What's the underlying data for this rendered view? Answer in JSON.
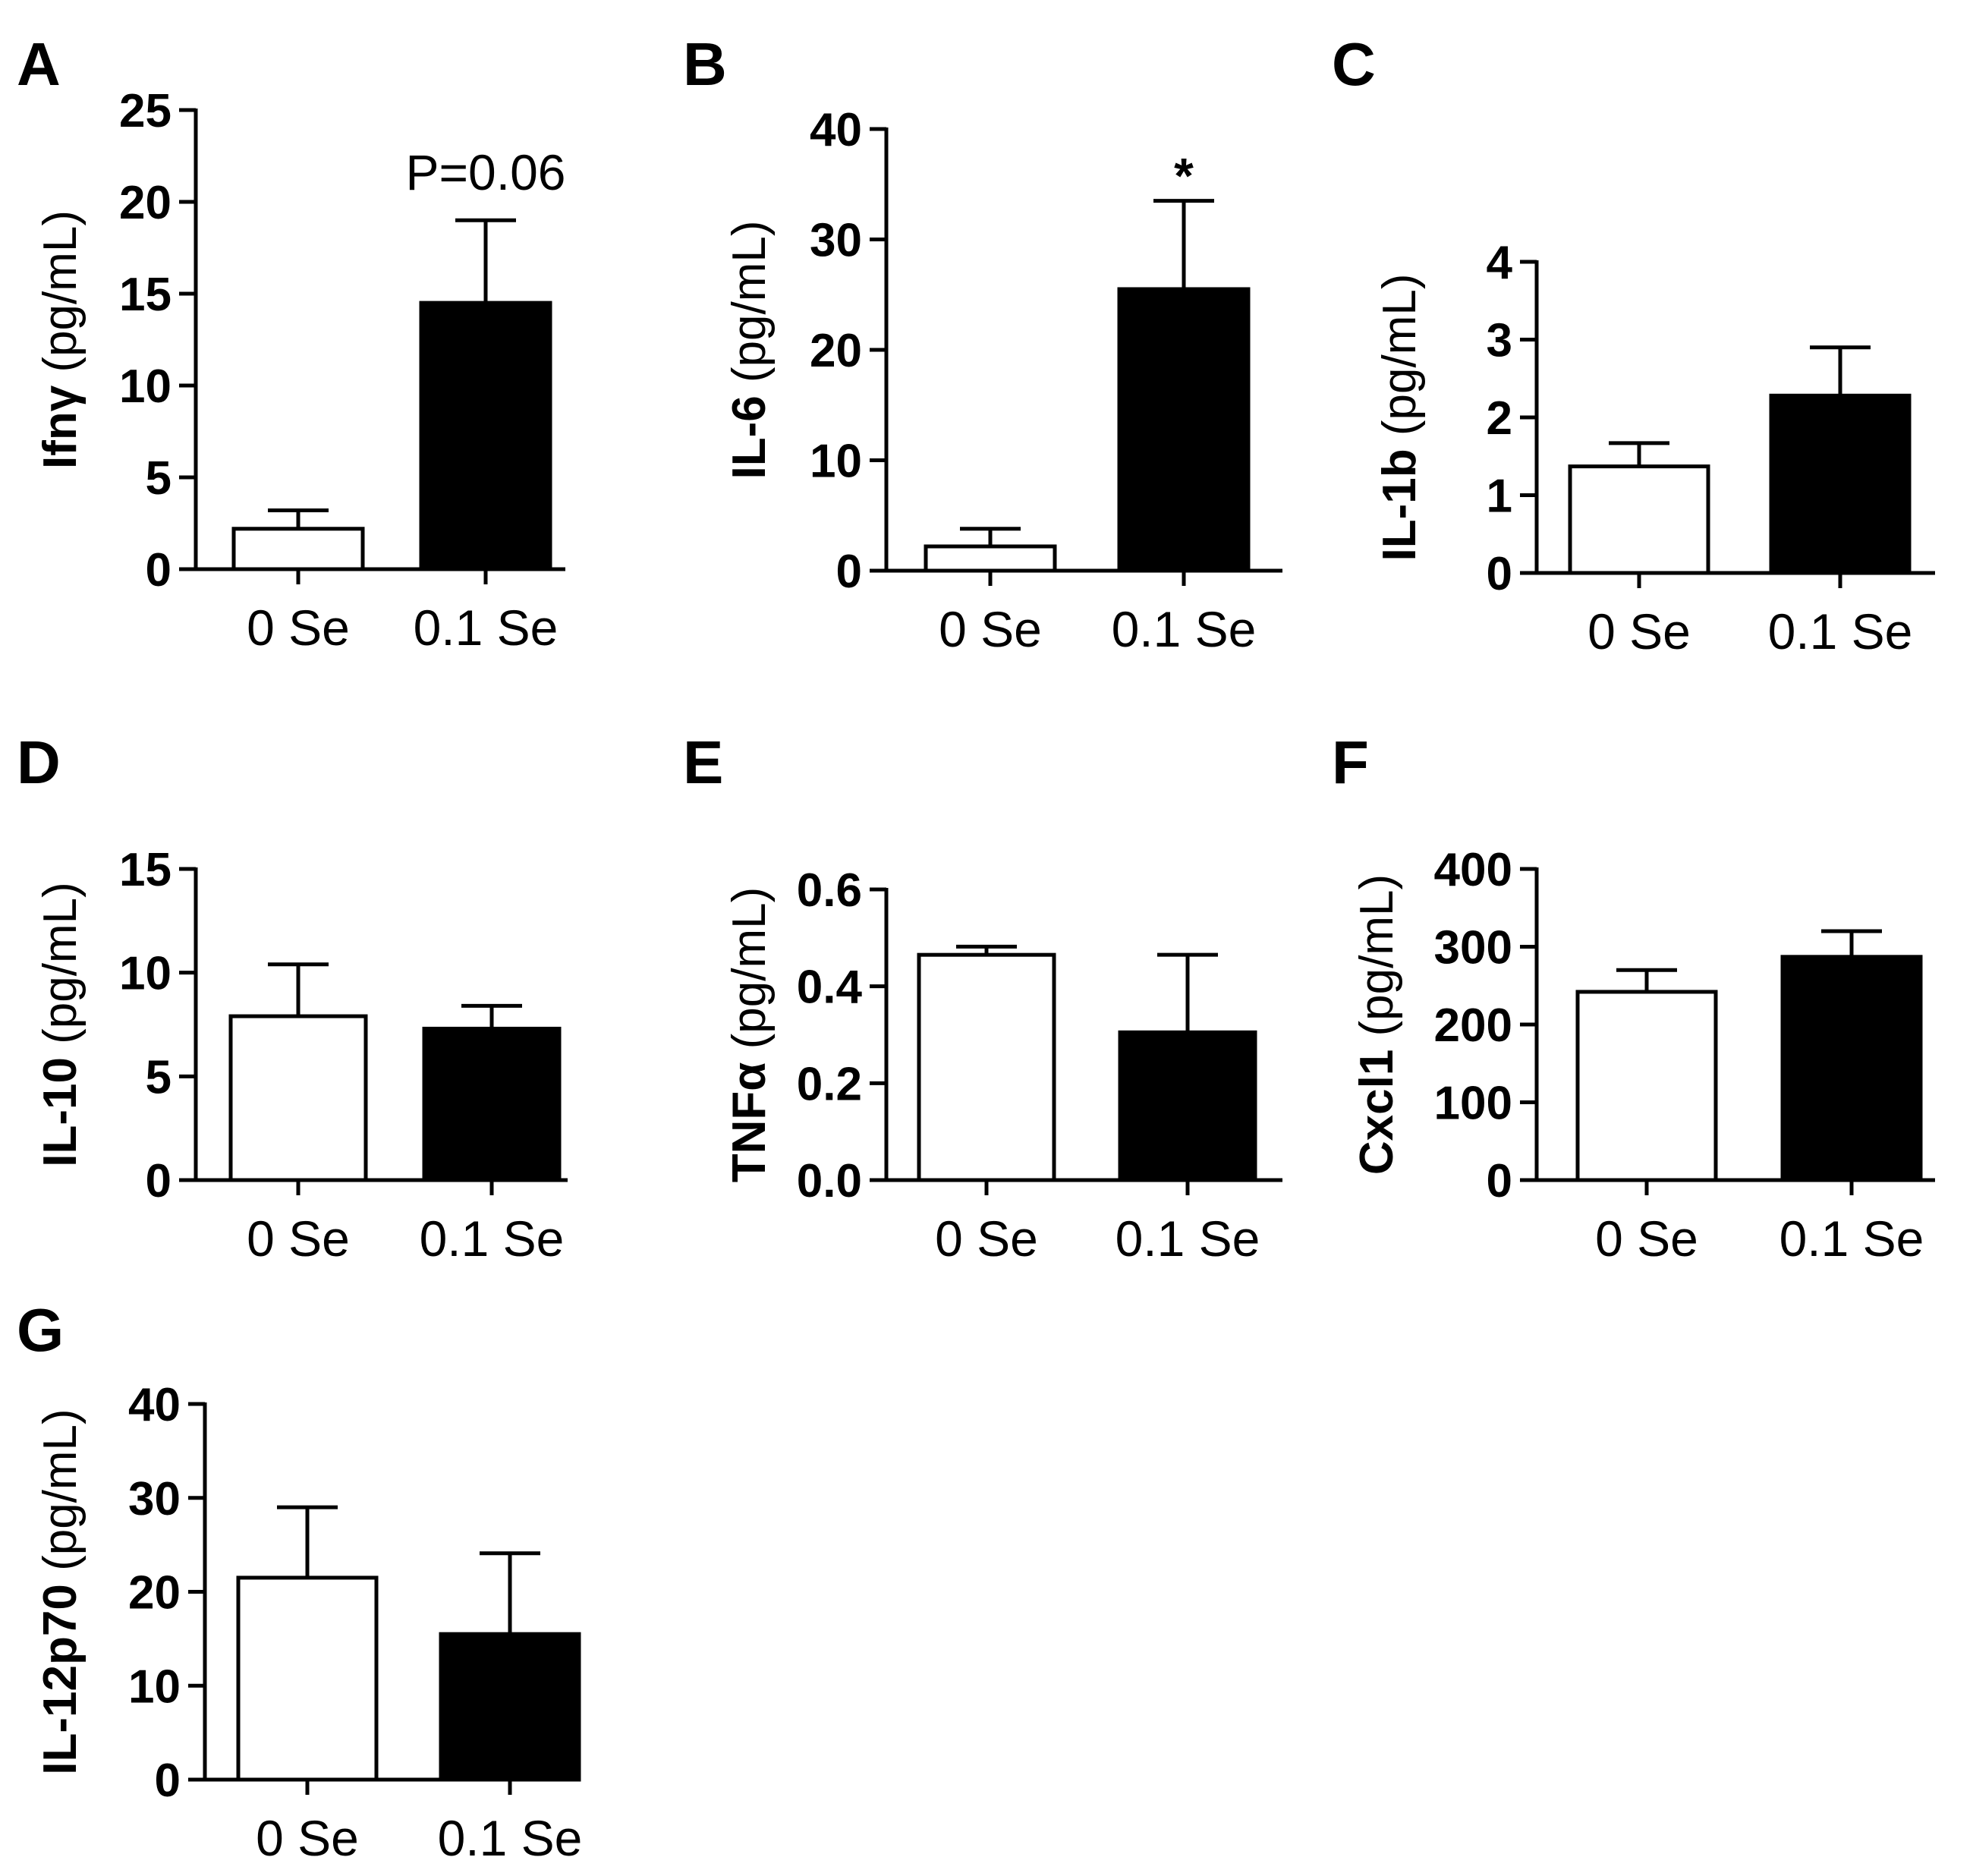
{
  "colors": {
    "axis": "#000000",
    "bar_control": "#ffffff",
    "bar_treatment": "#000000",
    "background": "#ffffff"
  },
  "chart_data": [
    {
      "panel": "A",
      "type": "bar",
      "ylabel_name": "Ifnγ",
      "ylabel_unit": " (pg/mL)",
      "categories": [
        "0 Se",
        "0.1 Se"
      ],
      "values": [
        2.2,
        14.5
      ],
      "errors": [
        1.0,
        4.5
      ],
      "ylim": [
        0,
        25
      ],
      "yticks": [
        "0",
        "5",
        "10",
        "15",
        "20",
        "25"
      ],
      "annotation": "P=0.06"
    },
    {
      "panel": "B",
      "type": "bar",
      "ylabel_name": "IL-6",
      "ylabel_unit": " (pg/mL)",
      "categories": [
        "0 Se",
        "0.1 Se"
      ],
      "values": [
        2.2,
        25.5
      ],
      "errors": [
        1.6,
        8.0
      ],
      "ylim": [
        0,
        40
      ],
      "yticks": [
        "0",
        "10",
        "20",
        "30",
        "40"
      ],
      "annotation": "*"
    },
    {
      "panel": "C",
      "type": "bar",
      "ylabel_name": "IL-1b",
      "ylabel_unit": " (pg/mL)",
      "categories": [
        "0 Se",
        "0.1 Se"
      ],
      "values": [
        1.37,
        2.28
      ],
      "errors": [
        0.3,
        0.62
      ],
      "ylim": [
        0,
        4
      ],
      "yticks": [
        "0",
        "1",
        "2",
        "3",
        "4"
      ],
      "annotation": ""
    },
    {
      "panel": "D",
      "type": "bar",
      "ylabel_name": "IL-10",
      "ylabel_unit": " (pg/mL)",
      "categories": [
        "0 Se",
        "0.1 Se"
      ],
      "values": [
        7.9,
        7.3
      ],
      "errors": [
        2.5,
        1.1
      ],
      "ylim": [
        0,
        15
      ],
      "yticks": [
        "0",
        "5",
        "10",
        "15"
      ],
      "annotation": ""
    },
    {
      "panel": "E",
      "type": "bar",
      "ylabel_name": "TNFα",
      "ylabel_unit": " (pg/mL)",
      "categories": [
        "0 Se",
        "0.1 Se"
      ],
      "values": [
        0.465,
        0.305
      ],
      "errors": [
        0.017,
        0.16
      ],
      "ylim": [
        0,
        0.6
      ],
      "yticks": [
        "0.0",
        "0.2",
        "0.4",
        "0.6"
      ],
      "annotation": ""
    },
    {
      "panel": "F",
      "type": "bar",
      "ylabel_name": "Cxcl1",
      "ylabel_unit": " (pg/mL)",
      "categories": [
        "0 Se",
        "0.1 Se"
      ],
      "values": [
        242,
        287
      ],
      "errors": [
        28,
        33
      ],
      "ylim": [
        0,
        400
      ],
      "yticks": [
        "0",
        "100",
        "200",
        "300",
        "400"
      ],
      "annotation": ""
    },
    {
      "panel": "G",
      "type": "bar",
      "ylabel_name": "IL-12p70",
      "ylabel_unit": " (pg/mL)",
      "categories": [
        "0 Se",
        "0.1 Se"
      ],
      "values": [
        21.5,
        15.5
      ],
      "errors": [
        7.5,
        8.6
      ],
      "ylim": [
        0,
        40
      ],
      "yticks": [
        "0",
        "10",
        "20",
        "30",
        "40"
      ],
      "annotation": ""
    }
  ]
}
